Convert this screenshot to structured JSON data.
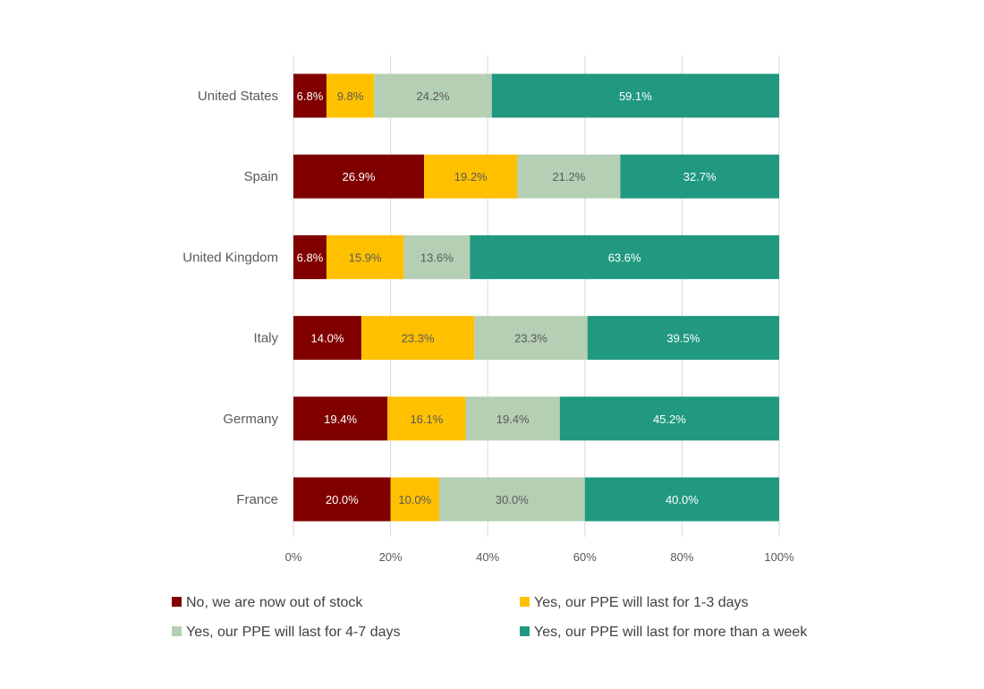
{
  "chart_data": {
    "type": "bar",
    "orientation": "horizontal",
    "stacked": "percent",
    "categories": [
      "United States",
      "Spain",
      "United Kingdom",
      "Italy",
      "Germany",
      "France"
    ],
    "series": [
      {
        "name": "No, we are now out of stock",
        "color": "#800000",
        "label_color": "#ffffff",
        "values": [
          6.8,
          26.9,
          6.8,
          14.0,
          19.4,
          20.0
        ],
        "labels": [
          "6.8%",
          "26.9%",
          "6.8%",
          "14.0%",
          "19.4%",
          "20.0%"
        ]
      },
      {
        "name": "Yes, our PPE will last for 1-3 days",
        "color": "#FFC000",
        "label_color": "#595959",
        "values": [
          9.8,
          19.2,
          15.9,
          23.3,
          16.1,
          10.0
        ],
        "labels": [
          "9.8%",
          "19.2%",
          "15.9%",
          "23.3%",
          "16.1%",
          "10.0%"
        ]
      },
      {
        "name": "Yes, our PPE will last for 4-7 days",
        "color": "#B5CFB4",
        "label_color": "#595959",
        "values": [
          24.2,
          21.2,
          13.6,
          23.3,
          19.4,
          30.0
        ],
        "labels": [
          "24.2%",
          "21.2%",
          "13.6%",
          "23.3%",
          "19.4%",
          "30.0%"
        ]
      },
      {
        "name": "Yes, our PPE will last for more than a week",
        "color": "#209980",
        "label_color": "#ffffff",
        "values": [
          59.1,
          32.7,
          63.6,
          39.5,
          45.2,
          40.0
        ],
        "labels": [
          "59.1%",
          "32.7%",
          "63.6%",
          "39.5%",
          "45.2%",
          "40.0%"
        ]
      }
    ],
    "xlim": [
      0,
      100
    ],
    "x_ticks": [
      0,
      20,
      40,
      60,
      80,
      100
    ],
    "x_tick_labels": [
      "0%",
      "20%",
      "40%",
      "60%",
      "80%",
      "100%"
    ],
    "grid": true,
    "legend_position": "bottom",
    "gridline_color": "#D9D9D9"
  }
}
